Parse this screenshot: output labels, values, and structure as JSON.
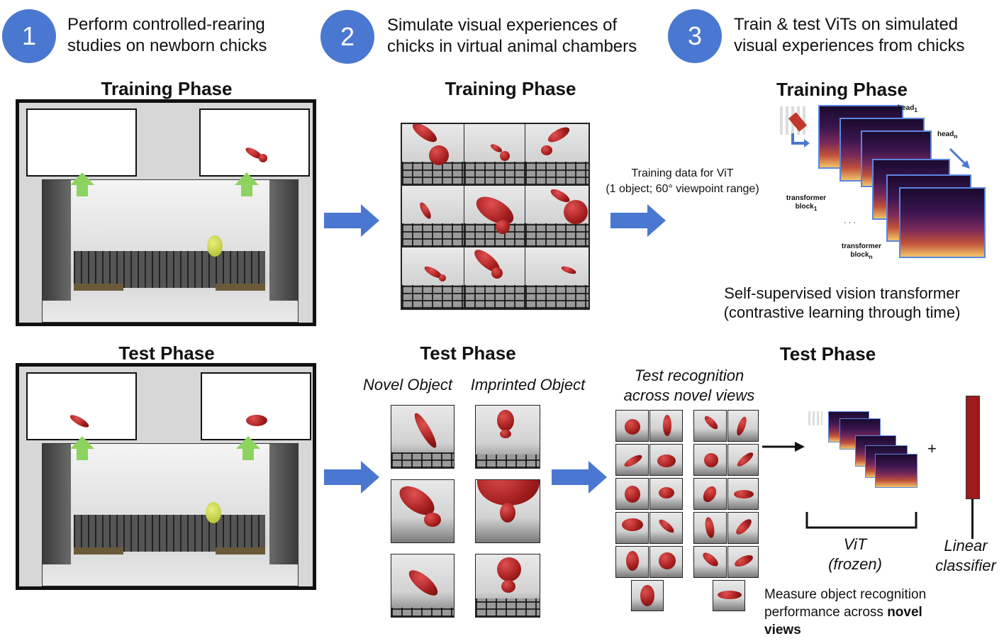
{
  "steps": [
    {
      "number": "1",
      "text_line1": "Perform controlled-rearing",
      "text_line2": "studies on newborn chicks"
    },
    {
      "number": "2",
      "text_line1": "Simulate visual experiences of",
      "text_line2": "chicks in virtual animal chambers"
    },
    {
      "number": "3",
      "text_line1": "Train & test ViTs on simulated",
      "text_line2": "visual experiences from chicks"
    }
  ],
  "col1": {
    "training_title": "Training Phase",
    "test_title": "Test Phase"
  },
  "col2": {
    "training_title": "Training Phase",
    "test_title": "Test Phase",
    "novel_label": "Novel Object",
    "imprinted_label": "Imprinted Object"
  },
  "col3": {
    "training_title": "Training Phase",
    "test_title": "Test Phase",
    "training_data_line1": "Training data for ViT",
    "training_data_line2": "(1 object; 60° viewpoint range)",
    "ssl_line1": "Self-supervised vision transformer",
    "ssl_line2": "(contrastive learning through time)",
    "test_recog_line1": "Test recognition",
    "test_recog_line2": "across novel views",
    "vit_label_line1": "ViT",
    "vit_label_line2": "(frozen)",
    "linear_line1": "Linear",
    "linear_line2": "classifier",
    "plus": "+",
    "measure_line1": "Measure object recognition",
    "measure_line2_plain": "performance across ",
    "measure_line2_bold": "novel",
    "measure_line3_bold": "views",
    "head1": "head",
    "head1_sub": "1",
    "headn": "head",
    "headn_sub": "n",
    "block1": "transformer",
    "block1_b": "block",
    "block1_sub": "1",
    "blockn": "transformer",
    "blockn_b": "block",
    "blockn_sub": "n",
    "dots": "· · ·"
  },
  "colors": {
    "step_circle": "#4a78d1",
    "arrow_blue": "#4a78d1",
    "object_red": "#b22222",
    "linear_bar": "#9e1b1b",
    "green_arrow": "#8dd35f"
  }
}
